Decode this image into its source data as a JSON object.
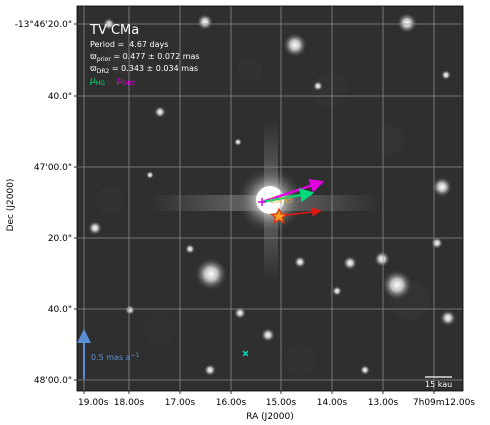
{
  "panel": {
    "title": "TV CMa",
    "period_label": "Period =",
    "period_value": "4.67 days",
    "parallax_prior_symbol": "ϖ",
    "parallax_prior_sub": "prior",
    "parallax_prior_value": " = 0.477 ± 0.072 mas",
    "parallax_dr2_symbol": "ϖ",
    "parallax_dr2_sub": "DR2",
    "parallax_dr2_value": " = 0.343 ± 0.034 mas",
    "legend_hg_mu": "μ",
    "legend_hg_sub": "HG",
    "legend_dr2_mu": "μ",
    "legend_dr2_sub": "DR2",
    "phase_label": "0.455",
    "pm_scale_label": "0.5 mas a",
    "pm_scale_exp": "−1",
    "size_scale_label": "15 kau"
  },
  "axes": {
    "x_title": "RA (J2000)",
    "y_title": "Dec (J2000)",
    "x_ticks": [
      "19.00s",
      "18.00s",
      "17.00s",
      "16.00s",
      "15.00s",
      "14.00s",
      "13.00s",
      "7h09m12.00s"
    ],
    "y_ticks": [
      "-13°46'20.0\"",
      "40.0\"",
      "47'00.0\"",
      "20.0\"",
      "40.0\"",
      "48'00.0\""
    ]
  },
  "colors": {
    "sky_background": "#2f2f2f",
    "grid": "#9a9a9a",
    "mu_hg": "#00d97a",
    "mu_dr2": "#e000e0",
    "extra_arrow": "#e01818",
    "pm_scale": "#5a8fd6",
    "star_marker": "#e03010",
    "phase_text": "#d8a020",
    "text": "#ffffff"
  }
}
